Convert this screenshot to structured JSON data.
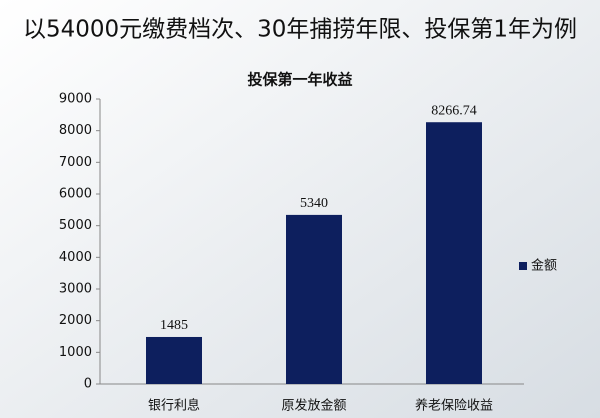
{
  "heading": "以54000元缴费档次、30年捕捞年限、投保第1年为例",
  "chart_data": {
    "type": "bar",
    "title": "投保第一年收益",
    "categories": [
      "银行利息",
      "原发放金额",
      "养老保险收益"
    ],
    "series": [
      {
        "name": "金额",
        "color": "#0d1f5e",
        "values": [
          1485,
          5340,
          8266.74
        ]
      }
    ],
    "ylim": [
      0,
      9000
    ],
    "yticks": [
      0,
      1000,
      2000,
      3000,
      4000,
      5000,
      6000,
      7000,
      8000,
      9000
    ],
    "grid": false,
    "legend": "right"
  }
}
